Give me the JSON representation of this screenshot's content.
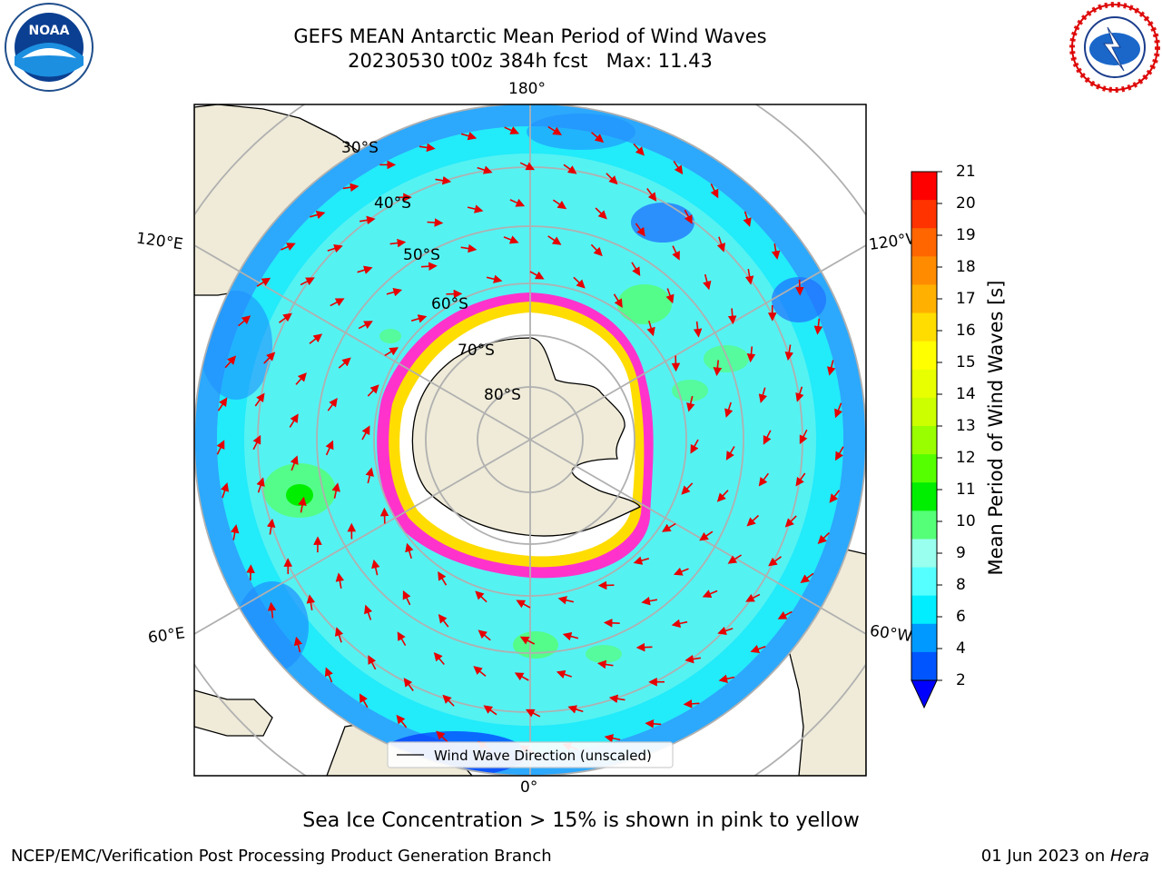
{
  "title": {
    "line1": "GEFS MEAN Antarctic Mean Period of Wind Waves",
    "line2": "20230530 t00z 384h fcst   Max: 11.43"
  },
  "map": {
    "longitude_labels": {
      "top": "180°",
      "bottom": "0°",
      "left_upper": "120°E",
      "right_upper": "120°W",
      "left_lower": "60°E",
      "right_lower": "60°W"
    },
    "latitude_labels": [
      "30°S",
      "40°S",
      "50°S",
      "60°S",
      "70°S",
      "80°S"
    ],
    "legend_label": "Wind Wave Direction (unscaled)",
    "colors": {
      "land": "#efebd8",
      "ocean_base": "#55f2f2",
      "ice_pink": "#ff33cc",
      "ice_yellow": "#ffcc00",
      "arrow": "#e60000"
    }
  },
  "colorbar": {
    "label": "Mean Period of Wind Waves [s]",
    "ticks": [
      "21",
      "20",
      "19",
      "18",
      "17",
      "16",
      "15",
      "14",
      "13",
      "12",
      "11",
      "10",
      "9",
      "8",
      "6",
      "4",
      "2"
    ],
    "colors": [
      "#ff0000",
      "#ff3300",
      "#ff6600",
      "#ff8c00",
      "#ffb000",
      "#ffdd00",
      "#ffff00",
      "#e8ff00",
      "#ccff00",
      "#99ff00",
      "#55ff00",
      "#00ee00",
      "#55ff77",
      "#99ffee",
      "#55ffff",
      "#00eeff",
      "#0099ff",
      "#0055ff"
    ],
    "under_color": "#0000ff"
  },
  "subtitle": "Sea Ice Concentration > 15% is shown in pink to yellow",
  "footer": {
    "left": "NCEP/EMC/Verification Post Processing Product Generation Branch",
    "right_date": "01 Jun 2023 on ",
    "right_host": "Hera"
  },
  "logos": {
    "left_text": "NOAA",
    "right_text": "NATIONAL WEATHER SERVICE"
  }
}
